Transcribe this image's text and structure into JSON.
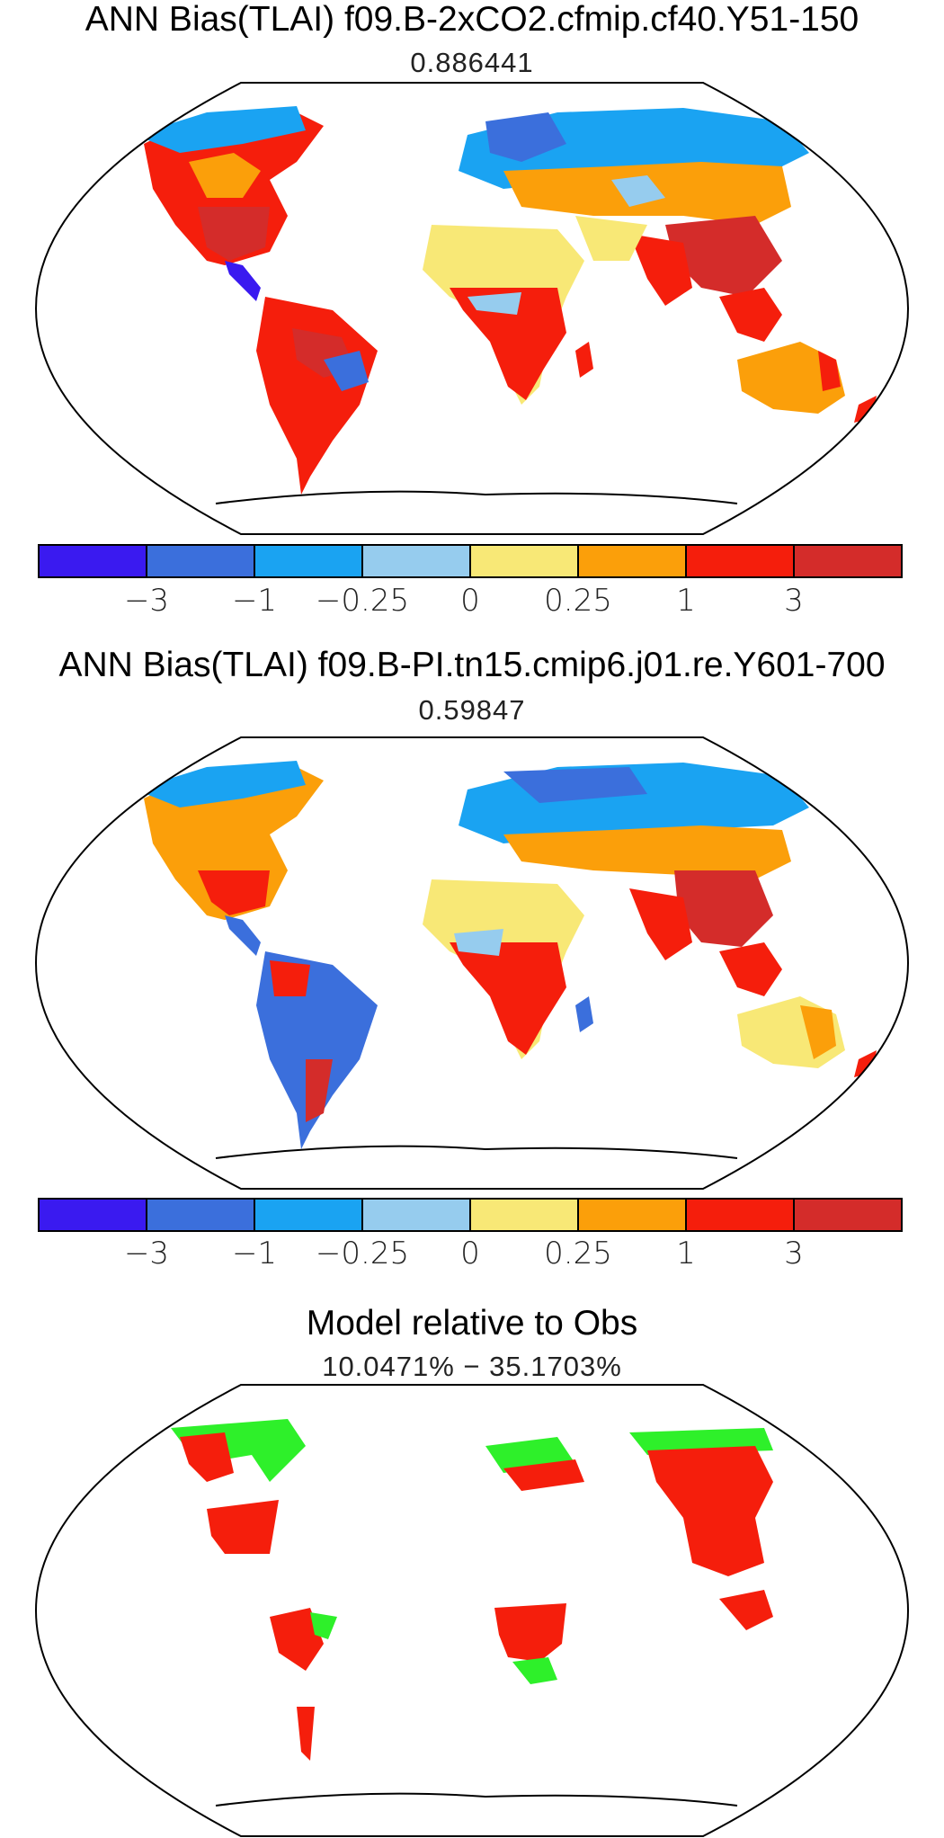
{
  "panels": [
    {
      "title": "ANN Bias(TLAI) f09.B-2xCO2.cfmip.cf40.Y51-150",
      "subtitle": "0.886441"
    },
    {
      "title": "ANN Bias(TLAI) f09.B-PI.tn15.cmip6.j01.re.Y601-700",
      "subtitle": "0.59847"
    },
    {
      "title": "Model relative to Obs",
      "subtitle": "10.0471% − 35.1703%"
    }
  ],
  "colorbar": {
    "colors": [
      "#3a1af0",
      "#3b6fdc",
      "#1aa3f2",
      "#96ccee",
      "#f8e876",
      "#fb9f0a",
      "#f51e0c",
      "#d42c2a"
    ],
    "labels": [
      "−3",
      "−1",
      "−0.25",
      "0",
      "0.25",
      "1",
      "3"
    ]
  },
  "chart_data": [
    {
      "type": "heatmap",
      "title": "ANN Bias(TLAI) f09.B-2xCO2.cfmip.cf40.Y51-150",
      "subtitle": "0.886441",
      "projection": "Robinson",
      "bins": [
        -3,
        -1,
        -0.25,
        0,
        0.25,
        1,
        3
      ]
    },
    {
      "type": "heatmap",
      "title": "ANN Bias(TLAI) f09.B-PI.tn15.cmip6.j01.re.Y601-700",
      "subtitle": "0.59847",
      "projection": "Robinson",
      "bins": [
        -3,
        -1,
        -0.25,
        0,
        0.25,
        1,
        3
      ]
    },
    {
      "type": "heatmap",
      "title": "Model relative to Obs",
      "subtitle": "10.0471% − 35.1703%",
      "projection": "Robinson",
      "categories_colors": [
        "#f51e0c",
        "#2ef02a"
      ]
    }
  ]
}
